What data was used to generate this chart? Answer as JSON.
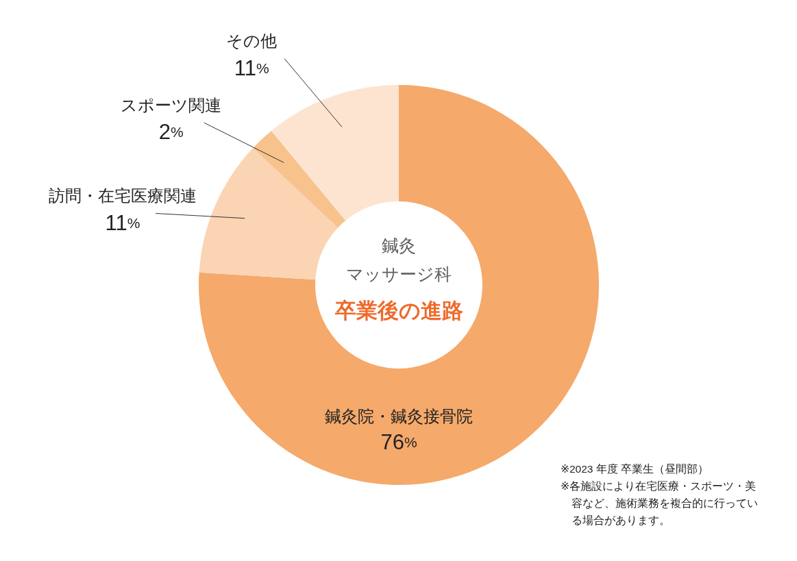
{
  "chart_data": {
    "type": "donut",
    "title": "鍼灸マッサージ科",
    "subtitle": "卒業後の進路",
    "categories": [
      "鍼灸院・鍼灸接骨院",
      "訪問・在宅医療関連",
      "スポーツ関連",
      "その他"
    ],
    "values": [
      76,
      11,
      2,
      11
    ],
    "colors": [
      "#f5a96b",
      "#fbd4b4",
      "#f8c28d",
      "#fce4d0"
    ],
    "value_labels": [
      "76%",
      "11%",
      "2%",
      "11%"
    ],
    "annotations": [
      "※2023 年度 卒業生（昼間部）",
      "※各施設により在宅医療・スポーツ・美容など、施術業務を複合的に行っている場合があります。"
    ]
  }
}
